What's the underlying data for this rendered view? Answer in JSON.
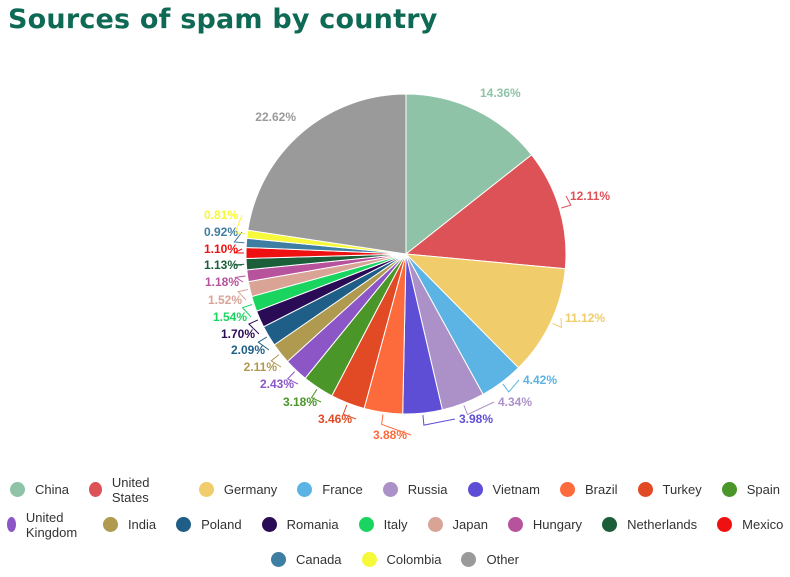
{
  "title": "Sources of spam by country",
  "chart_data": {
    "type": "pie",
    "title": "Sources of spam by country",
    "legend_position": "bottom",
    "slices": [
      {
        "label": "China",
        "value": 14.36,
        "display": "14.36%",
        "color": "#8ec3a7"
      },
      {
        "label": "United States",
        "value": 12.11,
        "display": "12.11%",
        "color": "#dd5257"
      },
      {
        "label": "Germany",
        "value": 11.12,
        "display": "11.12%",
        "color": "#f1cc6a"
      },
      {
        "label": "France",
        "value": 4.42,
        "display": "4.42%",
        "color": "#5cb4e4"
      },
      {
        "label": "Russia",
        "value": 4.34,
        "display": "4.34%",
        "color": "#ac91c8"
      },
      {
        "label": "Vietnam",
        "value": 3.98,
        "display": "3.98%",
        "color": "#5e4ed6"
      },
      {
        "label": "Brazil",
        "value": 3.88,
        "display": "3.88%",
        "color": "#fd6b3c"
      },
      {
        "label": "Turkey",
        "value": 3.46,
        "display": "3.46%",
        "color": "#e14a25"
      },
      {
        "label": "Spain",
        "value": 3.18,
        "display": "3.18%",
        "color": "#4a9628"
      },
      {
        "label": "United Kingdom",
        "value": 2.43,
        "display": "2.43%",
        "color": "#8c56c6"
      },
      {
        "label": "India",
        "value": 2.11,
        "display": "2.11%",
        "color": "#b09a50"
      },
      {
        "label": "Poland",
        "value": 2.09,
        "display": "2.09%",
        "color": "#1f5f87"
      },
      {
        "label": "Romania",
        "value": 1.7,
        "display": "1.70%",
        "color": "#2a0b56"
      },
      {
        "label": "Italy",
        "value": 1.54,
        "display": "1.54%",
        "color": "#19d55f"
      },
      {
        "label": "Japan",
        "value": 1.52,
        "display": "1.52%",
        "color": "#d9a396"
      },
      {
        "label": "Hungary",
        "value": 1.18,
        "display": "1.18%",
        "color": "#b7529c"
      },
      {
        "label": "Netherlands",
        "value": 1.13,
        "display": "1.13%",
        "color": "#1a5e3a"
      },
      {
        "label": "Mexico",
        "value": 1.1,
        "display": "1.10%",
        "color": "#ef1111"
      },
      {
        "label": "Canada",
        "value": 0.92,
        "display": "0.92%",
        "color": "#3f7ea3"
      },
      {
        "label": "Colombia",
        "value": 0.81,
        "display": "0.81%",
        "color": "#f6f83a"
      },
      {
        "label": "Other",
        "value": 22.62,
        "display": "22.62%",
        "color": "#9a9a9a"
      }
    ]
  }
}
